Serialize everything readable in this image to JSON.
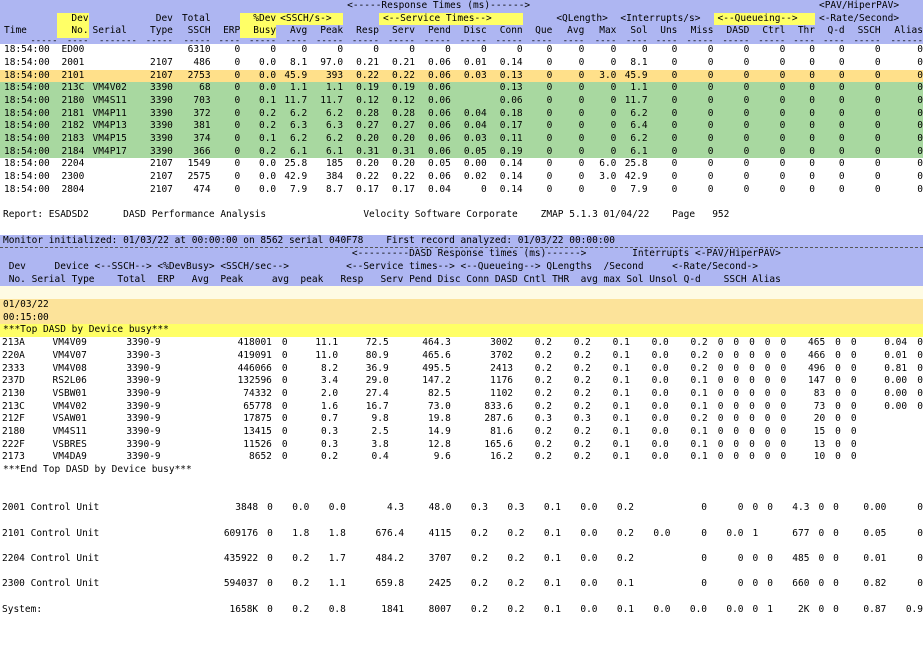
{
  "top": {
    "header_row1": {
      "response_times": "<-----Response Times (ms)------>",
      "pav": "<PAV/HiperPAV>"
    },
    "header_row2": [
      "",
      "Dev",
      "",
      "Dev",
      "Total",
      "",
      "%Dev",
      "<SSCH/s->",
      "",
      "<--Service Times-->",
      "",
      "",
      "",
      "",
      "<QLength>",
      "",
      "<Interrupts/s>",
      "",
      "",
      "",
      "<--Queueing-->",
      "",
      "",
      "<-Rate/Second>",
      ""
    ],
    "columns": [
      "Time",
      "No.",
      "Serial",
      "Type",
      "SSCH",
      "ERP",
      "Busy",
      "Avg",
      "Peak",
      "Resp",
      "Serv",
      "Pend",
      "Disc",
      "Conn",
      "Que",
      "Avg",
      "Max",
      "Sol",
      "Uns",
      "Miss",
      "DASD",
      "Ctrl",
      "Thr",
      "Q-d",
      "SSCH",
      "Alias"
    ],
    "rows": [
      {
        "style": "white",
        "cells": [
          "18:54:00",
          "ED00",
          "",
          "",
          "6310",
          "0",
          "0",
          "0",
          "0",
          "0",
          "0",
          "0",
          "0",
          "0",
          "0",
          "0",
          "0",
          "0",
          "0",
          "0",
          "0",
          "0",
          "0",
          "0",
          "0",
          "0"
        ]
      },
      {
        "style": "white",
        "cells": [
          "18:54:00",
          "2001",
          "",
          "2107",
          "486",
          "0",
          "0.0",
          "8.1",
          "97.0",
          "0.21",
          "0.21",
          "0.06",
          "0.01",
          "0.14",
          "0",
          "0",
          "0",
          "8.1",
          "0",
          "0",
          "0",
          "0",
          "0",
          "0",
          "0",
          "0"
        ]
      },
      {
        "style": "sel",
        "cells": [
          "18:54:00",
          "2101",
          "",
          "2107",
          "2753",
          "0",
          "0.0",
          "45.9",
          "393",
          "0.22",
          "0.22",
          "0.06",
          "0.03",
          "0.13",
          "0",
          "0",
          "3.0",
          "45.9",
          "0",
          "0",
          "0",
          "0",
          "0",
          "0",
          "0",
          "0"
        ]
      },
      {
        "style": "green",
        "cells": [
          "18:54:00",
          "213C",
          "VM4V02",
          "3390",
          "68",
          "0",
          "0.0",
          "1.1",
          "1.1",
          "0.19",
          "0.19",
          "0.06",
          "",
          "0.13",
          "0",
          "0",
          "0",
          "1.1",
          "0",
          "0",
          "0",
          "0",
          "0",
          "0",
          "0",
          "0"
        ]
      },
      {
        "style": "green",
        "cells": [
          "18:54:00",
          "2180",
          "VM4S11",
          "3390",
          "703",
          "0",
          "0.1",
          "11.7",
          "11.7",
          "0.12",
          "0.12",
          "0.06",
          "",
          "0.06",
          "0",
          "0",
          "0",
          "11.7",
          "0",
          "0",
          "0",
          "0",
          "0",
          "0",
          "0",
          "0"
        ]
      },
      {
        "style": "green",
        "cells": [
          "18:54:00",
          "2181",
          "VM4P11",
          "3390",
          "372",
          "0",
          "0.2",
          "6.2",
          "6.2",
          "0.28",
          "0.28",
          "0.06",
          "0.04",
          "0.18",
          "0",
          "0",
          "0",
          "6.2",
          "0",
          "0",
          "0",
          "0",
          "0",
          "0",
          "0",
          "0"
        ]
      },
      {
        "style": "green",
        "cells": [
          "18:54:00",
          "2182",
          "VM4P13",
          "3390",
          "381",
          "0",
          "0.2",
          "6.3",
          "6.3",
          "0.27",
          "0.27",
          "0.06",
          "0.04",
          "0.17",
          "0",
          "0",
          "0",
          "6.4",
          "0",
          "0",
          "0",
          "0",
          "0",
          "0",
          "0",
          "0"
        ]
      },
      {
        "style": "green",
        "cells": [
          "18:54:00",
          "2183",
          "VM4P15",
          "3390",
          "374",
          "0",
          "0.1",
          "6.2",
          "6.2",
          "0.20",
          "0.20",
          "0.06",
          "0.03",
          "0.11",
          "0",
          "0",
          "0",
          "6.2",
          "0",
          "0",
          "0",
          "0",
          "0",
          "0",
          "0",
          "0"
        ]
      },
      {
        "style": "green",
        "cells": [
          "18:54:00",
          "2184",
          "VM4P17",
          "3390",
          "366",
          "0",
          "0.2",
          "6.1",
          "6.1",
          "0.31",
          "0.31",
          "0.06",
          "0.05",
          "0.19",
          "0",
          "0",
          "0",
          "6.1",
          "0",
          "0",
          "0",
          "0",
          "0",
          "0",
          "0",
          "0"
        ]
      },
      {
        "style": "white",
        "cells": [
          "18:54:00",
          "2204",
          "",
          "2107",
          "1549",
          "0",
          "0.0",
          "25.8",
          "185",
          "0.20",
          "0.20",
          "0.05",
          "0.00",
          "0.14",
          "0",
          "0",
          "6.0",
          "25.8",
          "0",
          "0",
          "0",
          "0",
          "0",
          "0",
          "0",
          "0"
        ]
      },
      {
        "style": "white",
        "cells": [
          "18:54:00",
          "2300",
          "",
          "2107",
          "2575",
          "0",
          "0.0",
          "42.9",
          "384",
          "0.22",
          "0.22",
          "0.06",
          "0.02",
          "0.14",
          "0",
          "0",
          "3.0",
          "42.9",
          "0",
          "0",
          "0",
          "0",
          "0",
          "0",
          "0",
          "0"
        ]
      },
      {
        "style": "white",
        "cells": [
          "18:54:00",
          "2804",
          "",
          "2107",
          "474",
          "0",
          "0.0",
          "7.9",
          "8.7",
          "0.17",
          "0.17",
          "0.04",
          "0",
          "0.14",
          "0",
          "0",
          "0",
          "7.9",
          "0",
          "0",
          "0",
          "0",
          "0",
          "0",
          "0",
          "0"
        ]
      }
    ]
  },
  "report_line": "Report: ESADSD2      DASD Performance Analysis                 Velocity Software Corporate    ZMAP 5.1.3 01/04/22    Page   952",
  "monitor_line": "Monitor initialized: 01/03/22 at 00:00:00 on 8562 serial 040F78    First record analyzed: 01/03/22 00:00:00",
  "bottom": {
    "header_lines": [
      "                                                             <---------DASD Response times (ms)------>        Interrupts <-PAV/HiperPAV>",
      " Dev     Device <--SSCH--> <%DevBusy> <SSCH/sec-->          <--Service times--> <--Queueing--> QLengths  /Second     <-Rate/Second->",
      " No. Serial Type    Total  ERP   Avg  Peak     avg  peak   Resp   Serv Pend Disc Conn DASD Cntl THR  avg max Sol Unsol Q-d    SSCH Alias"
    ],
    "date": "01/03/22",
    "time": "00:15:00",
    "top_title": "***Top DASD by Device busy***",
    "end_title": "***End Top DASD by Device busy***",
    "rows": [
      [
        "213A",
        "VM4V09",
        "3390-9",
        "418001",
        "0",
        "11.1",
        "72.5",
        "464.3",
        "3002",
        "0.2",
        "0.2",
        "0.1",
        "0.0",
        "0.2",
        "0",
        "0",
        "0",
        "0",
        "0",
        "465",
        "0",
        "0",
        "0.04",
        "0"
      ],
      [
        "220A",
        "VM4V07",
        "3390-3",
        "419091",
        "0",
        "11.0",
        "80.9",
        "465.6",
        "3702",
        "0.2",
        "0.2",
        "0.1",
        "0.0",
        "0.2",
        "0",
        "0",
        "0",
        "0",
        "0",
        "466",
        "0",
        "0",
        "0.01",
        "0"
      ],
      [
        "2333",
        "VM4V08",
        "3390-9",
        "446066",
        "0",
        "8.2",
        "36.9",
        "495.5",
        "2413",
        "0.2",
        "0.2",
        "0.1",
        "0.0",
        "0.2",
        "0",
        "0",
        "0",
        "0",
        "0",
        "496",
        "0",
        "0",
        "0.81",
        "0"
      ],
      [
        "237D",
        "RS2L06",
        "3390-9",
        "132596",
        "0",
        "3.4",
        "29.0",
        "147.2",
        "1176",
        "0.2",
        "0.2",
        "0.1",
        "0.0",
        "0.1",
        "0",
        "0",
        "0",
        "0",
        "0",
        "147",
        "0",
        "0",
        "0.00",
        "0"
      ],
      [
        "2130",
        "VSBW01",
        "3390-9",
        "74332",
        "0",
        "2.0",
        "27.4",
        "82.5",
        "1102",
        "0.2",
        "0.2",
        "0.1",
        "0.0",
        "0.1",
        "0",
        "0",
        "0",
        "0",
        "0",
        "83",
        "0",
        "0",
        "0.00",
        "0"
      ],
      [
        "213C",
        "VM4V02",
        "3390-9",
        "65778",
        "0",
        "1.6",
        "16.7",
        "73.0",
        "833.6",
        "0.2",
        "0.2",
        "0.1",
        "0.0",
        "0.1",
        "0",
        "0",
        "0",
        "0",
        "0",
        "73",
        "0",
        "0",
        "0.00",
        "0"
      ],
      [
        "212F",
        "VSAW01",
        "3390-9",
        "17875",
        "0",
        "0.7",
        "9.8",
        "19.8",
        "287.6",
        "0.3",
        "0.3",
        "0.1",
        "0.0",
        "0.2",
        "0",
        "0",
        "0",
        "0",
        "0",
        "20",
        "0",
        "0",
        "",
        ""
      ],
      [
        "2180",
        "VM4S11",
        "3390-9",
        "13415",
        "0",
        "0.3",
        "2.5",
        "14.9",
        "81.6",
        "0.2",
        "0.2",
        "0.1",
        "0.0",
        "0.1",
        "0",
        "0",
        "0",
        "0",
        "0",
        "15",
        "0",
        "0",
        "",
        ""
      ],
      [
        "222F",
        "VSBRES",
        "3390-9",
        "11526",
        "0",
        "0.3",
        "3.8",
        "12.8",
        "165.6",
        "0.2",
        "0.2",
        "0.1",
        "0.0",
        "0.1",
        "0",
        "0",
        "0",
        "0",
        "0",
        "13",
        "0",
        "0",
        "",
        ""
      ],
      [
        "2173",
        "VM4DA9",
        "3390-9",
        "8652",
        "0",
        "0.2",
        "0.4",
        "9.6",
        "16.2",
        "0.2",
        "0.2",
        "0.1",
        "0.0",
        "0.1",
        "0",
        "0",
        "0",
        "0",
        "0",
        "10",
        "0",
        "0",
        "",
        ""
      ]
    ],
    "control_units": [
      {
        "no": "2001",
        "name": "Control Unit",
        "total": "3848",
        "erp": "0",
        "avg": "0.0",
        "peak": "0.0",
        "ssavg": "4.3",
        "sspeak": "48.0",
        "resp": "0.3",
        "serv": "0.3",
        "pend": "0.1",
        "disc": "0.0",
        "conn": "0.2",
        "dasd": "",
        "cntl": "0",
        "thr": "0",
        "qavg": "0",
        "qmax": "0",
        "sol": "4.3",
        "unsol": "0",
        "qd": "0",
        "rssch": "0.00",
        "alias": "0"
      },
      {
        "no": "2101",
        "name": "Control Unit",
        "total": "609176",
        "erp": "0",
        "avg": "1.8",
        "peak": "1.8",
        "ssavg": "676.4",
        "sspeak": "4115",
        "resp": "0.2",
        "serv": "0.2",
        "pend": "0.1",
        "disc": "0.0",
        "conn": "0.2",
        "dasd": "0.0",
        "cntl": "0",
        "thr": "0.0",
        "qavg": "1",
        "qmax": "",
        "sol": "677",
        "unsol": "0",
        "qd": "0",
        "rssch": "0.05",
        "alias": "0"
      },
      {
        "no": "2204",
        "name": "Control Unit",
        "total": "435922",
        "erp": "0",
        "avg": "0.2",
        "peak": "1.7",
        "ssavg": "484.2",
        "sspeak": "3707",
        "resp": "0.2",
        "serv": "0.2",
        "pend": "0.1",
        "disc": "0.0",
        "conn": "0.2",
        "dasd": "",
        "cntl": "0",
        "thr": "0",
        "qavg": "0",
        "qmax": "0",
        "sol": "485",
        "unsol": "0",
        "qd": "0",
        "rssch": "0.01",
        "alias": "0"
      },
      {
        "no": "2300",
        "name": "Control Unit",
        "total": "594037",
        "erp": "0",
        "avg": "0.2",
        "peak": "1.1",
        "ssavg": "659.8",
        "sspeak": "2425",
        "resp": "0.2",
        "serv": "0.2",
        "pend": "0.1",
        "disc": "0.0",
        "conn": "0.1",
        "dasd": "",
        "cntl": "0",
        "thr": "0",
        "qavg": "0",
        "qmax": "0",
        "sol": "660",
        "unsol": "0",
        "qd": "0",
        "rssch": "0.82",
        "alias": "0"
      }
    ],
    "system": {
      "label": "System:",
      "total": "1658K",
      "erp": "0",
      "avg": "0.2",
      "peak": "0.8",
      "ssavg": "1841",
      "sspeak": "8007",
      "resp": "0.2",
      "serv": "0.2",
      "pend": "0.1",
      "disc": "0.0",
      "conn": "0.1",
      "dasd": "0.0",
      "cntl": "0.0",
      "thr": "0.0",
      "qavg": "0",
      "qmax": "1",
      "sol": "2K",
      "unsol": "0",
      "qd": "0",
      "rssch": "0.87",
      "alias": "0.9"
    }
  }
}
